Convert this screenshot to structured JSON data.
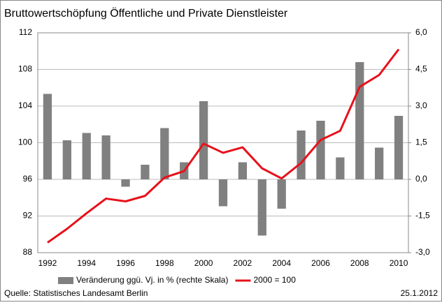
{
  "chart_data": {
    "type": "bar_line",
    "title": "Bruttowertschöpfung Öffentliche und Private Dienstleister",
    "categories": [
      "1992",
      null,
      "1994",
      null,
      "1996",
      null,
      "1998",
      null,
      "2000",
      null,
      "2002",
      null,
      "2004",
      null,
      "2006",
      null,
      "2008",
      null,
      "2010"
    ],
    "series": [
      {
        "name": "Veränderung ggü. Vj. in % (rechte Skala)",
        "type": "bar",
        "axis": "y2",
        "color": "#808080",
        "values": [
          3.5,
          1.6,
          1.9,
          1.8,
          -0.3,
          0.6,
          2.1,
          0.7,
          3.2,
          -1.1,
          0.7,
          -2.3,
          -1.2,
          2.0,
          2.4,
          0.9,
          4.8,
          1.3,
          2.6
        ]
      },
      {
        "name": "2000 = 100",
        "type": "line",
        "axis": "y",
        "color": "#e8101a",
        "values": [
          89.1,
          90.6,
          92.3,
          93.9,
          93.6,
          94.2,
          96.2,
          96.9,
          99.9,
          98.9,
          99.5,
          97.2,
          96.1,
          97.8,
          100.3,
          101.3,
          106.1,
          107.4,
          110.2
        ]
      }
    ],
    "ylim": [
      88,
      112
    ],
    "yticks": [
      88,
      92,
      96,
      100,
      104,
      108,
      112
    ],
    "y2lim": [
      -3,
      6
    ],
    "y2ticks": [
      {
        "value": -3,
        "label": "-3,0"
      },
      {
        "value": -1.5,
        "label": "-1,5"
      },
      {
        "value": 0,
        "label": "0,0"
      },
      {
        "value": 1.5,
        "label": "1,5"
      },
      {
        "value": 3,
        "label": "3,0"
      },
      {
        "value": 4.5,
        "label": "4,5"
      },
      {
        "value": 6,
        "label": "6,0"
      }
    ],
    "grid": true,
    "legend": "bottom",
    "source": "Quelle: Statistisches Landesamt Berlin",
    "date": "25.1.2012"
  }
}
